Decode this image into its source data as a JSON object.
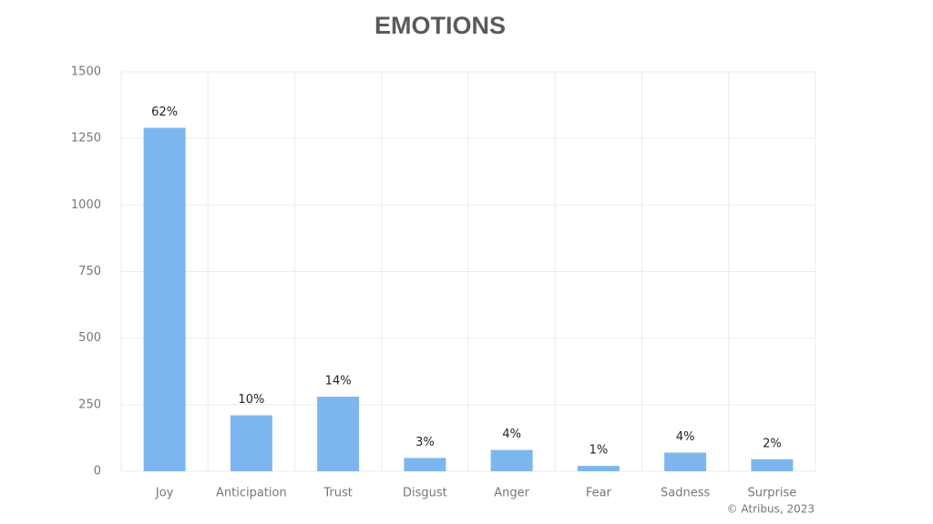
{
  "chart_data": {
    "type": "bar",
    "title": "EMOTIONS",
    "categories": [
      "Joy",
      "Anticipation",
      "Trust",
      "Disgust",
      "Anger",
      "Fear",
      "Sadness",
      "Surprise"
    ],
    "values": [
      1290,
      210,
      280,
      50,
      80,
      20,
      70,
      45
    ],
    "percent_labels": [
      "62%",
      "10%",
      "14%",
      "3%",
      "4%",
      "1%",
      "4%",
      "2%"
    ],
    "color": "#7db6ee",
    "ylim": [
      0,
      1500
    ],
    "yticks": [
      0,
      250,
      500,
      750,
      1000,
      1250,
      1500
    ],
    "grid": true,
    "footnote": "© Atribus, 2023"
  }
}
